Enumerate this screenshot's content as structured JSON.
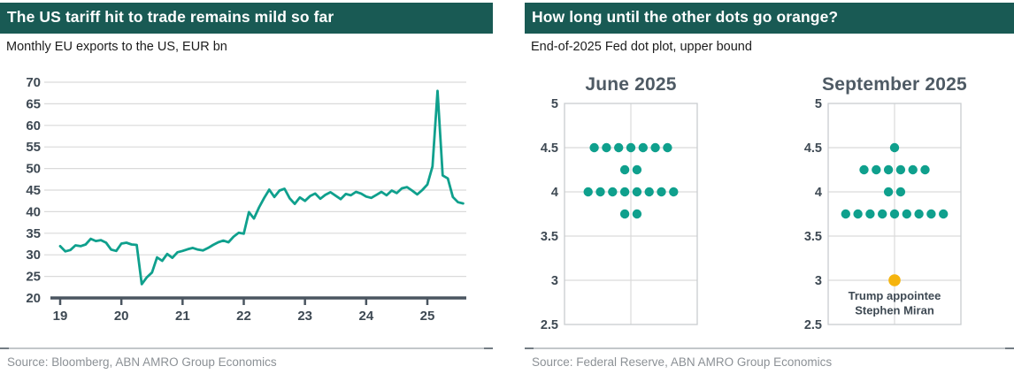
{
  "colors": {
    "header_bg": "#195A54",
    "header_text": "#FFFFFF",
    "teal": "#0FA08D",
    "orange": "#F5B40E",
    "axis_text": "#3E4953",
    "plot_title": "#4E5A64",
    "gridline": "#DADADA",
    "box_border": "#C9CDD0",
    "axis_line": "#4A5560",
    "source_text": "#8C9196"
  },
  "left_panel": {
    "title": "The US tariff hit to trade remains mild so far",
    "subtitle": "Monthly EU exports to the US, EUR bn",
    "source": "Source: Bloomberg, ABN AMRO Group Economics"
  },
  "right_panel": {
    "title": "How long until the other dots go orange?",
    "subtitle": "End-of-2025 Fed dot plot, upper bound",
    "source": "Source: Federal Reserve, ABN AMRO Group Economics"
  },
  "chart_data": [
    {
      "type": "line",
      "title": "Monthly EU exports to the US, EUR bn",
      "frequency": "monthly",
      "x_start": "2019-01",
      "x_end": "2025-08",
      "x_tick_labels": [
        "19",
        "20",
        "21",
        "22",
        "23",
        "24",
        "25"
      ],
      "ylim": [
        20,
        70
      ],
      "y_ticks": [
        20,
        25,
        30,
        35,
        40,
        45,
        50,
        55,
        60,
        65,
        70
      ],
      "grid": "horizontal",
      "legend": "none",
      "series": [
        {
          "name": "EU exports to the US, EUR bn",
          "color": "#0FA08D",
          "values": [
            32.0,
            30.8,
            31.1,
            32.2,
            32.0,
            32.4,
            33.7,
            33.2,
            33.4,
            32.8,
            31.2,
            30.9,
            32.6,
            32.8,
            32.4,
            32.3,
            23.2,
            24.8,
            25.9,
            29.4,
            28.6,
            30.2,
            29.3,
            30.6,
            30.9,
            31.3,
            31.6,
            31.2,
            31.0,
            31.6,
            32.3,
            32.9,
            33.3,
            32.9,
            34.2,
            35.1,
            34.9,
            39.9,
            38.4,
            41.0,
            43.2,
            45.1,
            43.4,
            44.9,
            45.3,
            43.1,
            41.8,
            43.3,
            42.5,
            43.6,
            44.2,
            43.0,
            43.9,
            44.5,
            43.7,
            42.9,
            44.1,
            43.8,
            44.6,
            44.2,
            43.5,
            43.2,
            43.9,
            44.6,
            43.8,
            44.9,
            44.3,
            45.4,
            45.7,
            44.9,
            44.0,
            45.0,
            46.3,
            50.5,
            68.0,
            48.4,
            47.7,
            43.4,
            42.2,
            41.9
          ]
        }
      ]
    },
    {
      "type": "scatter",
      "subtype": "fed-dot-plot",
      "title": "June 2025",
      "ylim": [
        2.5,
        5
      ],
      "y_ticks": [
        5,
        4.5,
        4,
        3.5,
        3,
        2.5
      ],
      "dot_color": "#0FA08D",
      "rows": [
        {
          "value": 4.5,
          "count": 7
        },
        {
          "value": 4.25,
          "count": 2
        },
        {
          "value": 4.0,
          "count": 8
        },
        {
          "value": 3.75,
          "count": 2
        }
      ]
    },
    {
      "type": "scatter",
      "subtype": "fed-dot-plot",
      "title": "September 2025",
      "ylim": [
        2.5,
        5
      ],
      "y_ticks": [
        5,
        4.5,
        4,
        3.5,
        3,
        2.5
      ],
      "dot_color": "#0FA08D",
      "rows": [
        {
          "value": 4.5,
          "count": 1
        },
        {
          "value": 4.25,
          "count": 6
        },
        {
          "value": 4.0,
          "count": 2
        },
        {
          "value": 3.75,
          "count": 9
        }
      ],
      "highlight_dot": {
        "value": 3.0,
        "color": "#F5B40E",
        "label_lines": [
          "Trump appointee",
          "Stephen Miran"
        ]
      }
    }
  ]
}
